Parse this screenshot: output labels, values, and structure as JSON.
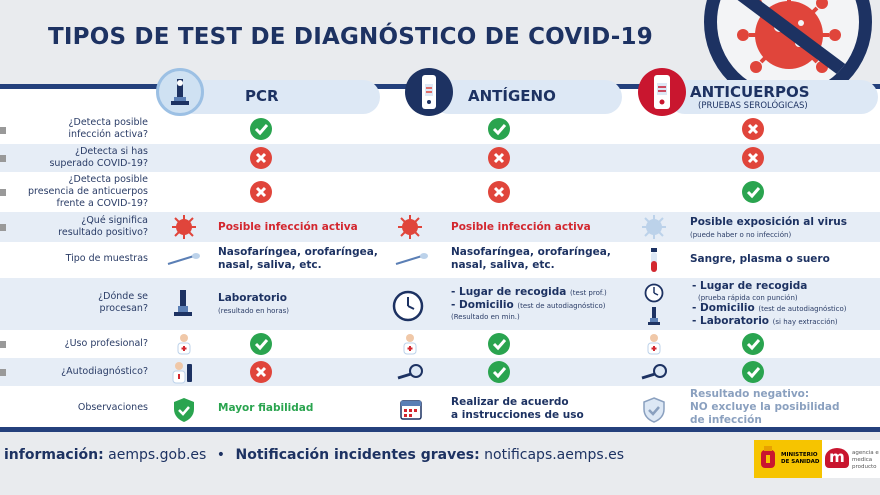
{
  "title": "TIPOS DE TEST DE DIAGNÓSTICO DE COVID-19",
  "columns": [
    {
      "label": "PCR",
      "sub": ""
    },
    {
      "label": "ANTÍGENO",
      "sub": ""
    },
    {
      "label": "ANTICUERPOS",
      "sub": "(PRUEBAS SEROLÓGICAS)"
    }
  ],
  "rows": {
    "q1": {
      "label_lines": [
        "¿Detecta posible",
        "infección activa?"
      ],
      "marks": [
        "yes",
        "yes",
        "no"
      ]
    },
    "q2": {
      "label_lines": [
        "¿Detecta si has",
        "superado COVID-19?"
      ],
      "marks": [
        "no",
        "no",
        "no"
      ]
    },
    "q3": {
      "label_lines": [
        "¿Detecta posible",
        "presencia de anticuerpos",
        "frente a COVID-19?"
      ],
      "marks": [
        "no",
        "no",
        "yes"
      ]
    },
    "q4": {
      "label_lines": [
        "¿Qué significa",
        "resultado positivo?"
      ],
      "pcr": "Posible infección activa",
      "antigeno": "Posible infección activa",
      "anticuerpos": "Posible exposición al virus",
      "anticuerpos_note": "(puede haber o no infección)"
    },
    "q5": {
      "label_lines": [
        "Tipo de muestras"
      ],
      "pcr_lines": [
        "Nasofaríngea, orofaríngea,",
        "nasal, saliva, etc."
      ],
      "antigeno_lines": [
        "Nasofaríngea, orofaríngea,",
        "nasal, saliva, etc."
      ],
      "anticuerpos": "Sangre, plasma o suero"
    },
    "q6": {
      "label_lines": [
        "¿Dónde se",
        "procesan?"
      ],
      "pcr": "Laboratorio",
      "pcr_note": "(resultado en horas)",
      "antigeno_1": "- Lugar de recogida",
      "antigeno_1_note": "(test prof.)",
      "antigeno_2": "- Domicilio",
      "antigeno_2_note": "(test de autodiagnóstico)",
      "antigeno_3_note": "(Resultado en min.)",
      "anticuerpos_1": "- Lugar de recogida",
      "anticuerpos_1_note": "(prueba rápida con punción)",
      "anticuerpos_2": "- Domicilio",
      "anticuerpos_2_note": "(test de autodiagnóstico)",
      "anticuerpos_3": "- Laboratorio",
      "anticuerpos_3_note": "(si hay extracción)"
    },
    "q7": {
      "label_lines": [
        "¿Uso profesional?"
      ],
      "marks": [
        "yes",
        "yes",
        "yes"
      ]
    },
    "q8": {
      "label_lines": [
        "¿Autodiagnóstico?"
      ],
      "marks": [
        "no",
        "yes",
        "yes"
      ]
    },
    "q9": {
      "label_lines": [
        "Observaciones"
      ],
      "pcr": "Mayor fiabilidad",
      "antigeno_lines": [
        "Realizar de acuerdo",
        "a instrucciones de uso"
      ],
      "anticuerpos_lines": [
        "Resultado negativo:",
        "NO excluye la posibilidad",
        "de infección"
      ]
    }
  },
  "footer": {
    "info_label": "información:",
    "info_value": "aemps.gob.es",
    "sep": "•",
    "notif_label": "Notificación incidentes graves:",
    "notif_value": "notificaps.aemps.es"
  },
  "logos": {
    "ministerio": [
      "MINISTERIO",
      "DE SANIDAD"
    ],
    "aemps_mark": "m",
    "aemps_text": [
      "agencia e",
      "medica",
      "producto"
    ]
  },
  "colors": {
    "navy": "#1d3262",
    "red": "#d3272f",
    "green": "#2aa44f",
    "light_blue": "#dde8f5"
  }
}
